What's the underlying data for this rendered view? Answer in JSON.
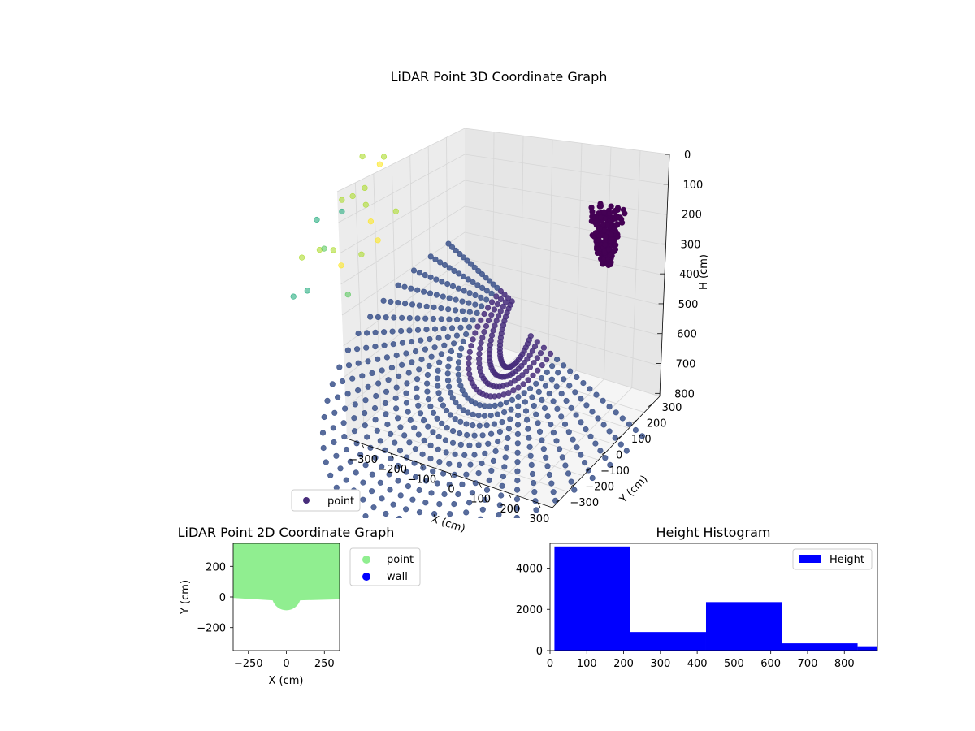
{
  "chart_data": [
    {
      "type": "scatter",
      "projection": "3d",
      "title": "LiDAR Point 3D Coordinate Graph",
      "xlabel": "X (cm)",
      "ylabel": "Y (cm)",
      "zlabel": "H (cm)",
      "x_ticks": [
        "−300",
        "−200",
        "−100",
        "0",
        "100",
        "200",
        "300"
      ],
      "y_ticks": [
        "−300",
        "−200",
        "−100",
        "0",
        "100",
        "200",
        "300"
      ],
      "z_ticks": [
        "0",
        "100",
        "200",
        "300",
        "400",
        "500",
        "600",
        "700",
        "800"
      ],
      "xlim": [
        -350,
        350
      ],
      "ylim": [
        -350,
        350
      ],
      "zlim": [
        0,
        850
      ],
      "z_inverted": true,
      "colormap": "viridis",
      "grid": true,
      "legend": {
        "placement": "lower-left",
        "entries": [
          {
            "label": "point",
            "color": "#472d7b"
          }
        ]
      },
      "point_cloud": {
        "description": "radial rays of wall points, funnel converging to the center bottom",
        "ray_count": 36,
        "points_per_ray": 18
      }
    },
    {
      "type": "scatter",
      "title": "LiDAR Point 2D Coordinate Graph",
      "xlabel": "X (cm)",
      "ylabel": "Y (cm)",
      "xlim": [
        -350,
        350
      ],
      "ylim": [
        -350,
        350
      ],
      "x_ticks": [
        "−250",
        "0",
        "250"
      ],
      "y_ticks": [
        "200",
        "0",
        "−200"
      ],
      "series": [
        {
          "name": "point",
          "color": "#90ee90",
          "region": {
            "y_min_edge": -20,
            "x_range": [
              -350,
              350
            ],
            "y_max": 350,
            "bulge_center": [
              0,
              -20
            ],
            "bulge_radius": 95
          }
        },
        {
          "name": "wall",
          "color": "#0000ff",
          "values": []
        }
      ],
      "legend": {
        "placement": "outside-right",
        "entries": [
          {
            "label": "point",
            "color": "#90ee90"
          },
          {
            "label": "wall",
            "color": "#0000ff"
          }
        ]
      }
    },
    {
      "type": "bar",
      "title": "Height Histogram",
      "xlabel": "",
      "ylabel": "",
      "xlim": [
        0,
        890
      ],
      "ylim": [
        0,
        5200
      ],
      "x_ticks": [
        "0",
        "100",
        "200",
        "300",
        "400",
        "500",
        "600",
        "700",
        "800"
      ],
      "y_ticks": [
        "0",
        "2000",
        "4000"
      ],
      "bins": [
        {
          "start": 12,
          "end": 218,
          "count": 5050
        },
        {
          "start": 218,
          "end": 424,
          "count": 900
        },
        {
          "start": 424,
          "end": 630,
          "count": 2350
        },
        {
          "start": 630,
          "end": 836,
          "count": 350
        },
        {
          "start": 836,
          "end": 1042,
          "count": 210
        }
      ],
      "color": "#0000ff",
      "legend": {
        "placement": "top-right",
        "entries": [
          {
            "label": "Height",
            "color": "#0000ff"
          }
        ]
      }
    }
  ]
}
